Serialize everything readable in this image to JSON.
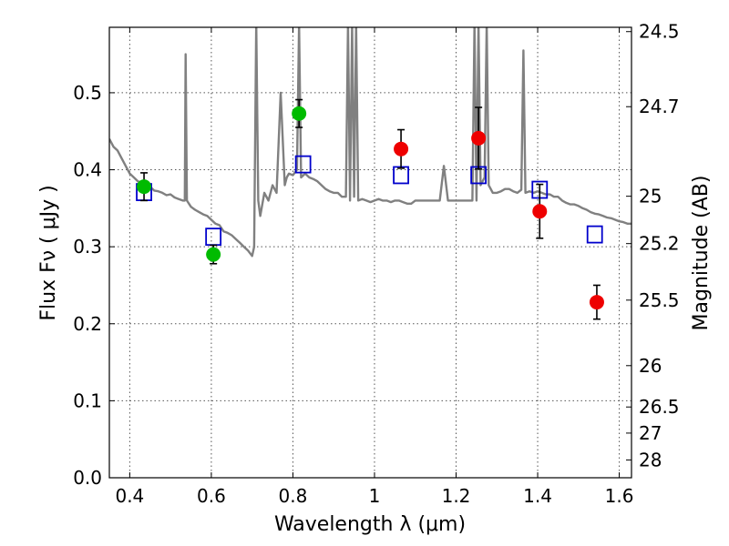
{
  "chart_data": {
    "type": "scatter",
    "title": "",
    "xlabel": "Wavelength  λ (μm)",
    "ylabel": "Flux  Fν  ( μJy )",
    "y2label": "Magnitude (AB)",
    "xlim": [
      0.35,
      1.63
    ],
    "ylim": [
      0.0,
      0.585
    ],
    "x_ticks": [
      0.4,
      0.6,
      0.8,
      1.0,
      1.2,
      1.4,
      1.6
    ],
    "x_tick_labels": [
      "0.4",
      "0.6",
      "0.8",
      "1",
      "1.2",
      "1.4",
      "1.6"
    ],
    "y_ticks": [
      0.0,
      0.1,
      0.2,
      0.3,
      0.4,
      0.5
    ],
    "y_tick_labels": [
      "0.0",
      "0.1",
      "0.2",
      "0.3",
      "0.4",
      "0.5"
    ],
    "y2_ticks": [
      {
        "label": "24.5",
        "flux": 0.5794
      },
      {
        "label": "24.7",
        "flux": 0.4819
      },
      {
        "label": "25",
        "flux": 0.3656
      },
      {
        "label": "25.2",
        "flux": 0.3041
      },
      {
        "label": "25.5",
        "flux": 0.2307
      },
      {
        "label": "26",
        "flux": 0.1456
      },
      {
        "label": "26.5",
        "flux": 0.0919
      },
      {
        "label": "27",
        "flux": 0.058
      },
      {
        "label": "28",
        "flux": 0.0231
      }
    ],
    "grid": true,
    "colors": {
      "model": "#808080",
      "optical": "#00bb00",
      "infrared": "#ee0000",
      "model_photometry": "#0000cc",
      "error_bars": "#000000"
    },
    "series": [
      {
        "kind": "model-spectrum",
        "x": [
          0.35,
          0.36,
          0.37,
          0.38,
          0.39,
          0.4,
          0.41,
          0.42,
          0.43,
          0.44,
          0.45,
          0.46,
          0.47,
          0.48,
          0.49,
          0.5,
          0.51,
          0.52,
          0.53,
          0.535,
          0.537,
          0.54,
          0.55,
          0.56,
          0.57,
          0.58,
          0.59,
          0.6,
          0.61,
          0.62,
          0.63,
          0.64,
          0.65,
          0.66,
          0.67,
          0.68,
          0.69,
          0.7,
          0.705,
          0.71,
          0.715,
          0.72,
          0.73,
          0.74,
          0.75,
          0.76,
          0.77,
          0.78,
          0.785,
          0.79,
          0.8,
          0.81,
          0.815,
          0.82,
          0.83,
          0.84,
          0.85,
          0.86,
          0.87,
          0.88,
          0.89,
          0.9,
          0.91,
          0.92,
          0.93,
          0.935,
          0.94,
          0.945,
          0.95,
          0.955,
          0.96,
          0.97,
          0.98,
          0.99,
          1.0,
          1.01,
          1.02,
          1.03,
          1.04,
          1.05,
          1.06,
          1.07,
          1.08,
          1.09,
          1.1,
          1.11,
          1.12,
          1.13,
          1.14,
          1.15,
          1.16,
          1.17,
          1.18,
          1.19,
          1.2,
          1.21,
          1.22,
          1.23,
          1.24,
          1.245,
          1.25,
          1.255,
          1.26,
          1.27,
          1.275,
          1.28,
          1.29,
          1.3,
          1.31,
          1.32,
          1.33,
          1.34,
          1.35,
          1.36,
          1.365,
          1.37,
          1.38,
          1.39,
          1.4,
          1.41,
          1.42,
          1.43,
          1.44,
          1.45,
          1.46,
          1.47,
          1.48,
          1.49,
          1.5,
          1.51,
          1.52,
          1.53,
          1.54,
          1.55,
          1.56,
          1.57,
          1.58,
          1.59,
          1.6,
          1.61,
          1.62,
          1.63
        ],
        "y": [
          0.44,
          0.43,
          0.425,
          0.415,
          0.405,
          0.395,
          0.39,
          0.385,
          0.383,
          0.38,
          0.378,
          0.373,
          0.372,
          0.37,
          0.367,
          0.368,
          0.364,
          0.362,
          0.36,
          0.36,
          0.55,
          0.36,
          0.352,
          0.348,
          0.345,
          0.342,
          0.34,
          0.335,
          0.33,
          0.328,
          0.32,
          0.318,
          0.315,
          0.31,
          0.305,
          0.3,
          0.295,
          0.288,
          0.3,
          0.59,
          0.36,
          0.34,
          0.37,
          0.36,
          0.38,
          0.37,
          0.5,
          0.38,
          0.39,
          0.395,
          0.393,
          0.4,
          0.59,
          0.39,
          0.395,
          0.39,
          0.388,
          0.385,
          0.38,
          0.375,
          0.372,
          0.37,
          0.37,
          0.365,
          0.365,
          0.59,
          0.36,
          0.59,
          0.365,
          0.59,
          0.36,
          0.362,
          0.36,
          0.358,
          0.36,
          0.362,
          0.36,
          0.36,
          0.358,
          0.36,
          0.36,
          0.358,
          0.356,
          0.356,
          0.36,
          0.36,
          0.36,
          0.36,
          0.36,
          0.36,
          0.36,
          0.405,
          0.36,
          0.36,
          0.36,
          0.36,
          0.36,
          0.36,
          0.36,
          0.59,
          0.36,
          0.59,
          0.38,
          0.39,
          0.59,
          0.38,
          0.37,
          0.37,
          0.372,
          0.375,
          0.375,
          0.372,
          0.37,
          0.374,
          0.555,
          0.37,
          0.372,
          0.37,
          0.372,
          0.37,
          0.368,
          0.368,
          0.365,
          0.365,
          0.36,
          0.357,
          0.355,
          0.355,
          0.353,
          0.35,
          0.348,
          0.345,
          0.343,
          0.342,
          0.34,
          0.338,
          0.337,
          0.335,
          0.333,
          0.332,
          0.33,
          0.33
        ]
      },
      {
        "kind": "observed",
        "name": "",
        "color": "#00bb00",
        "x": [
          0.435,
          0.605,
          0.815
        ],
        "y": [
          0.378,
          0.29,
          0.473
        ],
        "err": [
          0.018,
          0.012,
          0.018
        ]
      },
      {
        "kind": "observed",
        "name": "",
        "color": "#ee0000",
        "x": [
          1.065,
          1.255,
          1.405,
          1.545
        ],
        "y": [
          0.427,
          0.441,
          0.346,
          0.228
        ],
        "err": [
          0.025,
          0.04,
          0.035,
          0.022
        ]
      },
      {
        "kind": "model-photometry",
        "name": "",
        "color": "#0000cc",
        "x": [
          0.435,
          0.605,
          0.825,
          1.065,
          1.255,
          1.405,
          1.54
        ],
        "y": [
          0.371,
          0.313,
          0.407,
          0.393,
          0.393,
          0.374,
          0.316
        ]
      }
    ]
  }
}
